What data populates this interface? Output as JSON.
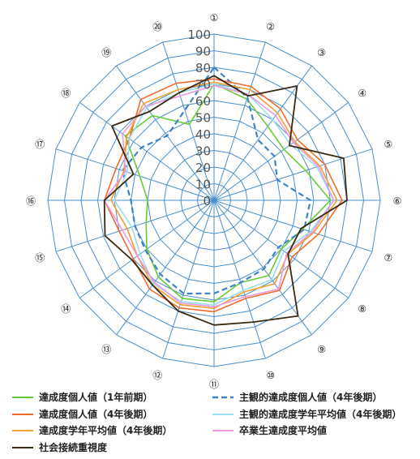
{
  "chart_data": {
    "type": "radar",
    "title": "",
    "rlim": [
      0,
      100
    ],
    "r_ticks": [
      "0",
      "10",
      "20",
      "30",
      "40",
      "50",
      "60",
      "70",
      "80",
      "90",
      "100"
    ],
    "categories": [
      "①",
      "②",
      "③",
      "④",
      "⑤",
      "⑥",
      "⑦",
      "⑧",
      "⑨",
      "⑩",
      "⑪",
      "⑫",
      "⑬",
      "⑭",
      "⑮",
      "⑯",
      "⑰",
      "⑱",
      "⑲",
      "⑳"
    ],
    "grid": true,
    "legend_position": "bottom",
    "series": [
      {
        "name": "達成度個人値（1年前期）",
        "color": "#66cc33",
        "dash": false,
        "width": 1.6,
        "values": [
          70,
          64,
          55,
          52,
          58,
          70,
          56,
          50,
          56,
          52,
          61,
          62,
          57,
          50,
          43,
          40,
          47,
          66,
          63,
          48
        ]
      },
      {
        "name": "主観的達成度個人値（4年後期）",
        "color": "#3d84c6",
        "dash": true,
        "width": 2.2,
        "values": [
          80,
          65,
          45,
          45,
          40,
          58,
          57,
          48,
          51,
          52,
          56,
          59,
          55,
          51,
          50,
          50,
          58,
          54,
          48,
          57
        ]
      },
      {
        "name": "達成度個人値（4年後期）",
        "color": "#ef6c2e",
        "dash": false,
        "width": 1.6,
        "values": [
          73,
          72,
          68,
          62,
          70,
          77,
          66,
          58,
          67,
          62,
          67,
          68,
          66,
          60,
          60,
          66,
          62,
          63,
          75,
          74
        ]
      },
      {
        "name": "主観的達成度学年平均値（4年後期）",
        "color": "#99ddee",
        "dash": false,
        "width": 1.6,
        "values": [
          70,
          67,
          60,
          57,
          65,
          72,
          61,
          52,
          59,
          57,
          63,
          64,
          62,
          55,
          52,
          60,
          55,
          63,
          69,
          68
        ]
      },
      {
        "name": "達成度学年平均値（4年後期）",
        "color": "#f0a030",
        "dash": false,
        "width": 1.6,
        "values": [
          71,
          70,
          65,
          60,
          67,
          74,
          63,
          55,
          62,
          58,
          65,
          66,
          63,
          57,
          55,
          62,
          57,
          65,
          72,
          70
        ]
      },
      {
        "name": "卒業生達成度平均値",
        "color": "#ee99dd",
        "dash": false,
        "width": 1.6,
        "values": [
          69,
          67,
          63,
          59,
          66,
          72,
          62,
          54,
          66,
          61,
          64,
          65,
          61,
          57,
          58,
          66,
          56,
          68,
          70,
          66
        ]
      },
      {
        "name": "社会接続重視度",
        "color": "#3a2a10",
        "dash": false,
        "width": 1.8,
        "values": [
          75,
          66,
          85,
          56,
          82,
          80,
          55,
          55,
          86,
          77,
          75,
          70,
          63,
          61,
          69,
          66,
          51,
          76,
          66,
          68
        ]
      }
    ]
  }
}
